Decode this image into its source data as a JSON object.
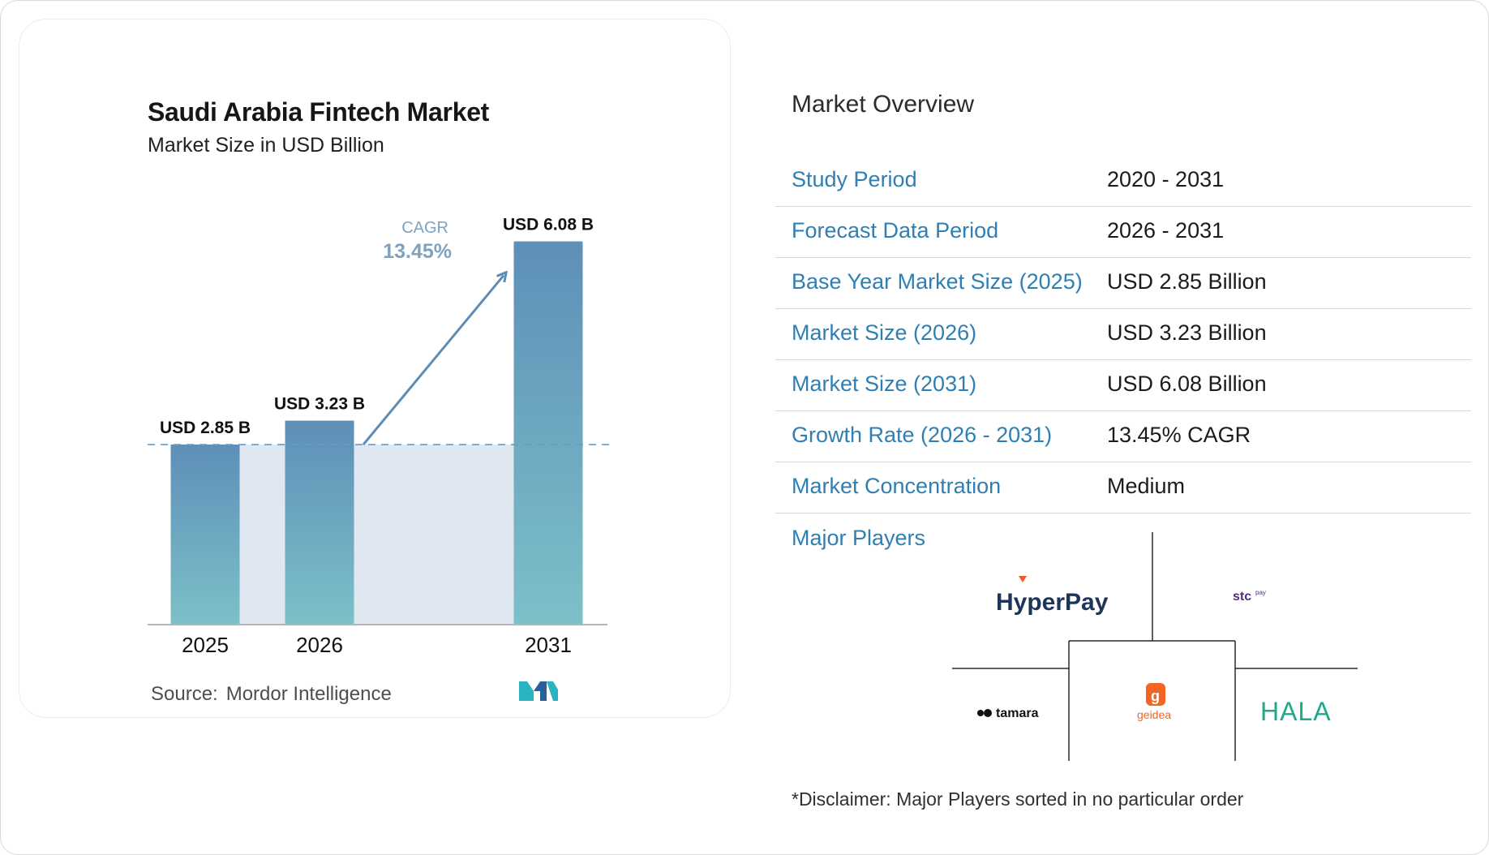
{
  "chart_data": {
    "type": "bar",
    "title": "Saudi Arabia Fintech Market",
    "subtitle": "Market Size in USD Billion",
    "categories": [
      "2025",
      "2026",
      "2031"
    ],
    "values": [
      2.85,
      3.23,
      6.08
    ],
    "data_labels": [
      "USD 2.85 B",
      "USD 3.23 B",
      "USD 6.08 B"
    ],
    "cagr_label": "CAGR",
    "cagr_value": "13.45%",
    "ylim": [
      0,
      6.5
    ],
    "grid": false,
    "colors": {
      "bar_top": "#5e8fb8",
      "bar_bottom": "#7cc0c8",
      "area": "#dfe7f0",
      "arrow": "#5b8db6",
      "baseline_dash": "#6a9ac0"
    }
  },
  "source": {
    "label": "Source:",
    "name": "Mordor Intelligence"
  },
  "overview": {
    "title": "Market Overview",
    "rows": [
      {
        "key": "Study Period",
        "value": "2020 - 2031"
      },
      {
        "key": "Forecast Data Period",
        "value": "2026 - 2031"
      },
      {
        "key": "Base Year Market Size (2025)",
        "value": "USD 2.85 Billion"
      },
      {
        "key": "Market Size (2026)",
        "value": "USD 3.23 Billion"
      },
      {
        "key": "Market Size (2031)",
        "value": "USD 6.08 Billion"
      },
      {
        "key": "Growth Rate (2026 - 2031)",
        "value": "13.45% CAGR"
      },
      {
        "key": "Market Concentration",
        "value": "Medium"
      }
    ]
  },
  "major_players": {
    "label": "Major Players",
    "logos": [
      "HyperPay",
      "stc pay",
      "tamara",
      "geidea",
      "HALA"
    ],
    "disclaimer": "*Disclaimer: Major Players sorted in no particular order"
  },
  "colors": {
    "accent": "#2f7fb2",
    "divider": "#d8d8d8"
  }
}
